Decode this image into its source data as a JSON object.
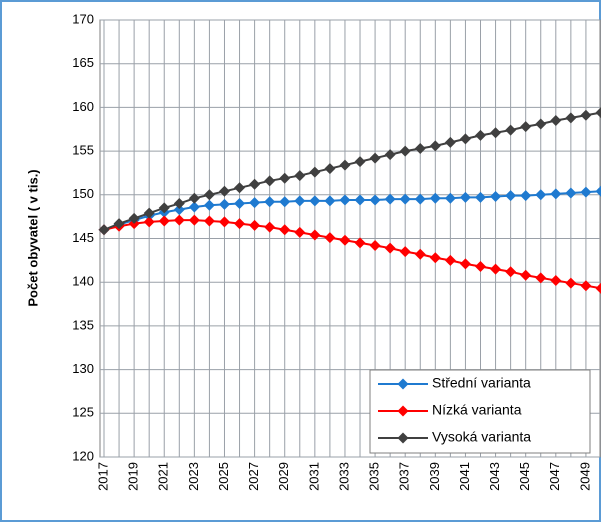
{
  "chart_data": {
    "type": "line",
    "y_label": "Počet obyvatel ( v tis.)",
    "categories": [
      "2017",
      null,
      "2019",
      null,
      "2021",
      null,
      "2023",
      null,
      "2025",
      null,
      "2027",
      null,
      "2029",
      null,
      "2031",
      null,
      "2033",
      null,
      "2035",
      null,
      "2037",
      null,
      "2039",
      null,
      "2041",
      null,
      "2043",
      null,
      "2045",
      null,
      "2047",
      null,
      "2049",
      null
    ],
    "series": [
      {
        "name": "Střední varianta",
        "color": "#1f7ad0",
        "values": [
          146,
          146.6,
          147.1,
          147.6,
          148.0,
          148.3,
          148.6,
          148.8,
          148.9,
          149.0,
          149.1,
          149.2,
          149.2,
          149.3,
          149.3,
          149.3,
          149.4,
          149.4,
          149.4,
          149.5,
          149.5,
          149.5,
          149.6,
          149.6,
          149.7,
          149.7,
          149.8,
          149.9,
          149.9,
          150.0,
          150.1,
          150.2,
          150.3,
          150.4
        ]
      },
      {
        "name": "Nízká varianta",
        "color": "#ff0000",
        "values": [
          146,
          146.4,
          146.7,
          146.9,
          147.0,
          147.1,
          147.1,
          147.0,
          146.9,
          146.7,
          146.5,
          146.3,
          146.0,
          145.7,
          145.4,
          145.1,
          144.8,
          144.5,
          144.2,
          143.9,
          143.5,
          143.2,
          142.8,
          142.5,
          142.1,
          141.8,
          141.5,
          141.2,
          140.8,
          140.5,
          140.2,
          139.9,
          139.6,
          139.3
        ]
      },
      {
        "name": "Vysoká varianta",
        "color": "#404040",
        "values": [
          146,
          146.7,
          147.3,
          147.9,
          148.5,
          149.0,
          149.6,
          150.0,
          150.4,
          150.8,
          151.2,
          151.6,
          151.9,
          152.2,
          152.6,
          153.0,
          153.4,
          153.8,
          154.2,
          154.6,
          155.0,
          155.3,
          155.6,
          156.0,
          156.4,
          156.8,
          157.1,
          157.4,
          157.8,
          158.1,
          158.5,
          158.8,
          159.1,
          159.4
        ]
      }
    ],
    "ylim": [
      120,
      170
    ],
    "yticks": [
      120,
      125,
      130,
      135,
      140,
      145,
      150,
      155,
      160,
      165,
      170
    ],
    "grid": true,
    "legend": "lower right"
  }
}
